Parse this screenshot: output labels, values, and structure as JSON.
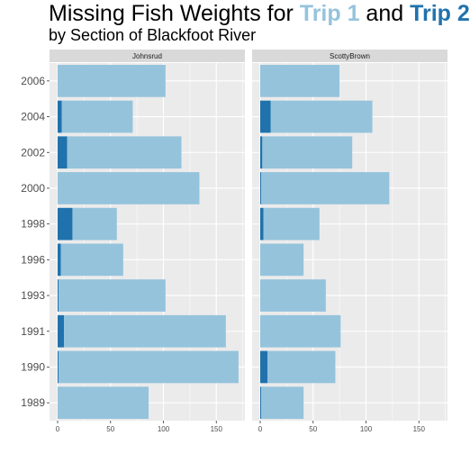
{
  "title": {
    "prefix": "Missing Fish Weights for ",
    "trip1": "Trip 1",
    "and": " and ",
    "trip2": "Trip 2"
  },
  "subtitle": "by Section of Blackfoot River",
  "colors": {
    "trip1": "#95c3dc",
    "trip2": "#2072ad",
    "panel_bg": "#ebebeb",
    "strip_bg": "#d9d9d9",
    "grid": "#ffffff"
  },
  "chart_data": {
    "type": "bar",
    "orientation": "horizontal",
    "stacked": true,
    "facets": [
      "Johnsrud",
      "ScottyBrown"
    ],
    "categories": [
      "1989",
      "1990",
      "1991",
      "1993",
      "1996",
      "1998",
      "2000",
      "2002",
      "2004",
      "2006"
    ],
    "xlim": [
      0,
      180
    ],
    "x_ticks": [
      0,
      50,
      100,
      150
    ],
    "grid": true,
    "series_note": "values per facet as [trip2, trip1]",
    "panels": [
      {
        "facet": "Johnsrud",
        "trip2": [
          0,
          1,
          6,
          1,
          3,
          14,
          0,
          9,
          4,
          0
        ],
        "trip1": [
          86,
          170,
          153,
          101,
          59,
          42,
          134,
          108,
          67,
          102
        ]
      },
      {
        "facet": "ScottyBrown",
        "trip2": [
          1,
          7,
          0,
          0,
          0,
          3,
          1,
          2,
          10,
          0
        ],
        "trip1": [
          40,
          64,
          76,
          62,
          41,
          53,
          121,
          85,
          96,
          75
        ]
      }
    ]
  }
}
